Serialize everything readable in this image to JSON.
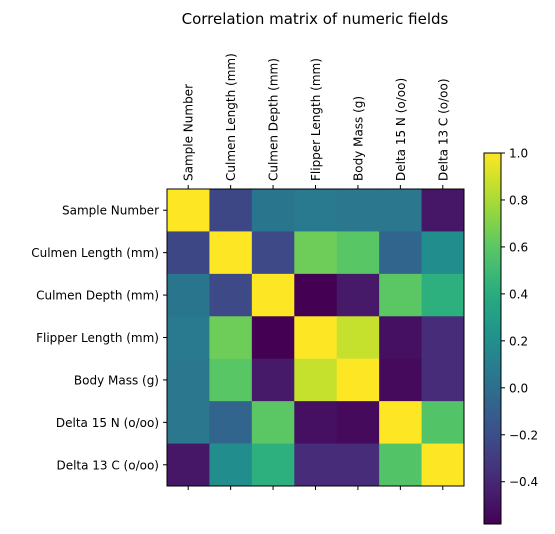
{
  "chart_data": {
    "type": "heatmap",
    "title": "Correlation matrix of numeric fields",
    "x_tick_labels": [
      "Sample Number",
      "Culmen Length (mm)",
      "Culmen Depth (mm)",
      "Flipper Length (mm)",
      "Body Mass (g)",
      "Delta 15 N (o/oo)",
      "Delta 13 C (o/oo)"
    ],
    "y_tick_labels": [
      "Sample Number",
      "Culmen Length (mm)",
      "Culmen Depth (mm)",
      "Flipper Length (mm)",
      "Body Mass (g)",
      "Delta 15 N (o/oo)",
      "Delta 13 C (o/oo)"
    ],
    "values": [
      [
        1.0,
        -0.24,
        0.04,
        0.07,
        0.05,
        0.05,
        -0.48
      ],
      [
        -0.24,
        1.0,
        -0.23,
        0.65,
        0.59,
        -0.06,
        0.19
      ],
      [
        0.04,
        -0.23,
        1.0,
        -0.58,
        -0.47,
        0.6,
        0.43
      ],
      [
        0.07,
        0.65,
        -0.58,
        1.0,
        0.87,
        -0.51,
        -0.38
      ],
      [
        0.05,
        0.59,
        -0.47,
        0.87,
        1.0,
        -0.54,
        -0.38
      ],
      [
        0.05,
        -0.06,
        0.6,
        -0.51,
        -0.54,
        1.0,
        0.57
      ],
      [
        -0.48,
        0.19,
        0.43,
        -0.38,
        -0.38,
        0.57,
        1.0
      ]
    ],
    "colormap": "viridis",
    "vmin": -0.58,
    "vmax": 1.0,
    "colorbar_ticks": [
      "1.0",
      "0.8",
      "0.6",
      "0.4",
      "0.2",
      "0.0",
      "−0.2",
      "−0.4"
    ],
    "colorbar_tick_values": [
      1.0,
      0.8,
      0.6,
      0.4,
      0.2,
      0.0,
      -0.2,
      -0.4
    ],
    "grid": false
  }
}
